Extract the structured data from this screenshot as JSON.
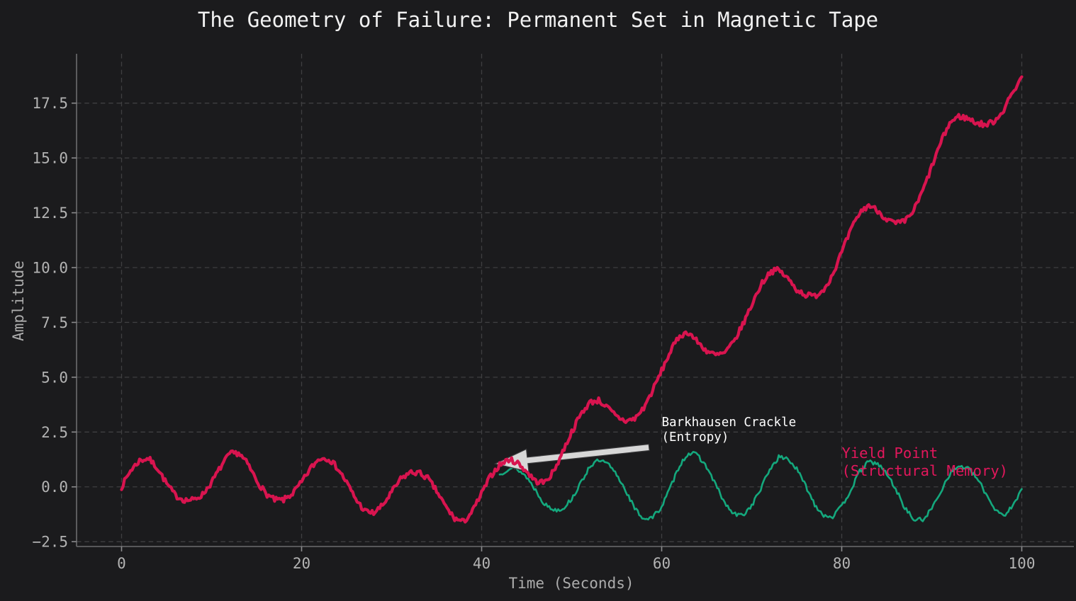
{
  "chart_data": {
    "type": "line",
    "title": "The Geometry of Failure: Permanent Set in Magnetic Tape",
    "xlabel": "Time (Seconds)",
    "ylabel": "Amplitude",
    "xlim": [
      -5,
      105
    ],
    "ylim": [
      -2.72,
      19.75
    ],
    "grid": true,
    "legend_position": "none",
    "xticks": [
      {
        "v": 0,
        "label": "0"
      },
      {
        "v": 20,
        "label": "20"
      },
      {
        "v": 40,
        "label": "40"
      },
      {
        "v": 60,
        "label": "60"
      },
      {
        "v": 80,
        "label": "80"
      },
      {
        "v": 100,
        "label": "100"
      }
    ],
    "yticks": [
      {
        "v": -2.5,
        "label": "−2.5"
      },
      {
        "v": 0.0,
        "label": "0.0"
      },
      {
        "v": 2.5,
        "label": "2.5"
      },
      {
        "v": 5.0,
        "label": "5.0"
      },
      {
        "v": 7.5,
        "label": "7.5"
      },
      {
        "v": 10.0,
        "label": "10.0"
      },
      {
        "v": 12.5,
        "label": "12.5"
      },
      {
        "v": 15.0,
        "label": "15.0"
      },
      {
        "v": 17.5,
        "label": "17.5"
      }
    ],
    "series": [
      {
        "name": "teal-oscillation",
        "color": "#14a87d",
        "line_width": 2.6,
        "noise_amplitude": 0.1,
        "noise_seed": 13,
        "x_start": 42,
        "x_step": 1,
        "values": [
          0.55,
          0.85,
          0.8,
          0.45,
          -0.15,
          -0.8,
          -1.05,
          -1.0,
          -0.55,
          0.15,
          0.95,
          1.2,
          1.05,
          0.55,
          -0.15,
          -1.0,
          -1.45,
          -1.4,
          -0.9,
          0.0,
          1.0,
          1.55,
          1.45,
          0.9,
          0.1,
          -0.75,
          -1.25,
          -1.3,
          -0.85,
          -0.1,
          0.8,
          1.35,
          1.3,
          0.8,
          0.05,
          -0.8,
          -1.3,
          -1.35,
          -0.9,
          -0.15,
          0.7,
          1.15,
          1.05,
          0.6,
          -0.1,
          -0.95,
          -1.5,
          -1.5,
          -1.0,
          -0.2,
          0.6,
          0.95,
          0.85,
          0.4,
          -0.3,
          -1.0,
          -1.3,
          -0.9,
          -0.1
        ]
      },
      {
        "name": "crimson-permanent-set",
        "color": "#d8144f",
        "line_width": 4.2,
        "noise_amplitude": 0.13,
        "noise_seed": 7,
        "x_start": 0,
        "x_step": 1,
        "values": [
          0.0,
          0.75,
          1.2,
          1.3,
          0.85,
          0.15,
          -0.4,
          -0.6,
          -0.6,
          -0.35,
          0.2,
          0.9,
          1.5,
          1.55,
          1.05,
          0.3,
          -0.3,
          -0.6,
          -0.6,
          -0.3,
          0.2,
          0.85,
          1.3,
          1.3,
          0.85,
          0.2,
          -0.55,
          -1.1,
          -1.2,
          -0.85,
          -0.25,
          0.35,
          0.65,
          0.65,
          0.4,
          -0.2,
          -0.9,
          -1.45,
          -1.6,
          -1.1,
          -0.3,
          0.5,
          1.0,
          1.25,
          1.1,
          0.7,
          0.25,
          0.2,
          0.7,
          1.6,
          2.5,
          3.3,
          3.85,
          3.95,
          3.6,
          3.2,
          3.0,
          3.1,
          3.6,
          4.4,
          5.3,
          6.2,
          6.9,
          7.05,
          6.6,
          6.2,
          6.0,
          6.1,
          6.6,
          7.4,
          8.3,
          9.2,
          9.8,
          9.9,
          9.5,
          9.0,
          8.75,
          8.7,
          9.0,
          9.7,
          10.7,
          11.7,
          12.5,
          12.85,
          12.6,
          12.2,
          12.0,
          12.1,
          12.6,
          13.5,
          14.6,
          15.7,
          16.6,
          16.9,
          16.8,
          16.6,
          16.5,
          16.7,
          17.2,
          18.0,
          18.7
        ]
      }
    ],
    "annotations": [
      {
        "id": "barkhausen",
        "lines": [
          "Barkhausen Crackle",
          "(Entropy)"
        ],
        "color": "#ffffff",
        "text_xy": [
          60.0,
          3.25
        ],
        "arrow": {
          "from_xy": [
            58.6,
            1.8
          ],
          "to_xy": [
            41.5,
            1.05
          ],
          "color": "#d7d7d7"
        }
      },
      {
        "id": "yield-point",
        "lines": [
          "Yield Point",
          "(Structural Memory)"
        ],
        "color": "#e2175c",
        "text_xy": [
          80.0,
          1.92
        ]
      }
    ],
    "style": {
      "figure_background": "#1b1b1d",
      "grid_color": "#3f3f41",
      "spine_color": "#6d6d6f",
      "tick_mark_color": "#8a8a8c",
      "tick_label_color": "#b3b3b3",
      "axis_label_color": "#acacac",
      "title_color": "#f2f2f2"
    }
  }
}
